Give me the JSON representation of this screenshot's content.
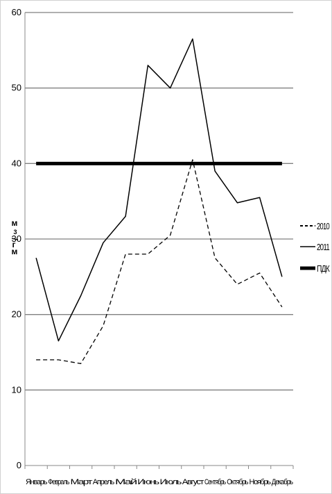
{
  "chart_data": {
    "type": "line",
    "title": "",
    "xlabel": "",
    "ylabel": "мг/м³",
    "ylabel_parts": [
      "м",
      "3",
      "/",
      "г",
      "м"
    ],
    "ylim": [
      0,
      60
    ],
    "y_ticks": [
      "0",
      "10",
      "20",
      "30",
      "40",
      "50",
      "60"
    ],
    "y_tick_values": [
      0,
      10,
      20,
      30,
      40,
      50,
      60
    ],
    "grid": "horizontal",
    "legend_position": "right",
    "categories": [
      "Январь",
      "Февраль",
      "Март",
      "Апрель",
      "Май",
      "Июнь",
      "Июль",
      "Август",
      "Сентябрь",
      "Октябрь",
      "Ноябрь",
      "Декабрь"
    ],
    "series": [
      {
        "name": "2010",
        "style": "dashed",
        "color": "#000000",
        "values": [
          14.0,
          14.0,
          13.5,
          18.5,
          28.0,
          28.0,
          30.5,
          40.5,
          27.5,
          24.0,
          25.5,
          21.0
        ]
      },
      {
        "name": "2011",
        "style": "solid",
        "color": "#000000",
        "values": [
          27.5,
          16.5,
          22.5,
          29.5,
          33.0,
          53.0,
          50.0,
          56.5,
          39.0,
          34.8,
          35.5,
          25.0
        ]
      },
      {
        "name": "ПДК",
        "style": "thick",
        "color": "#000000",
        "values": [
          40,
          40,
          40,
          40,
          40,
          40,
          40,
          40,
          40,
          40,
          40,
          40
        ]
      }
    ]
  }
}
